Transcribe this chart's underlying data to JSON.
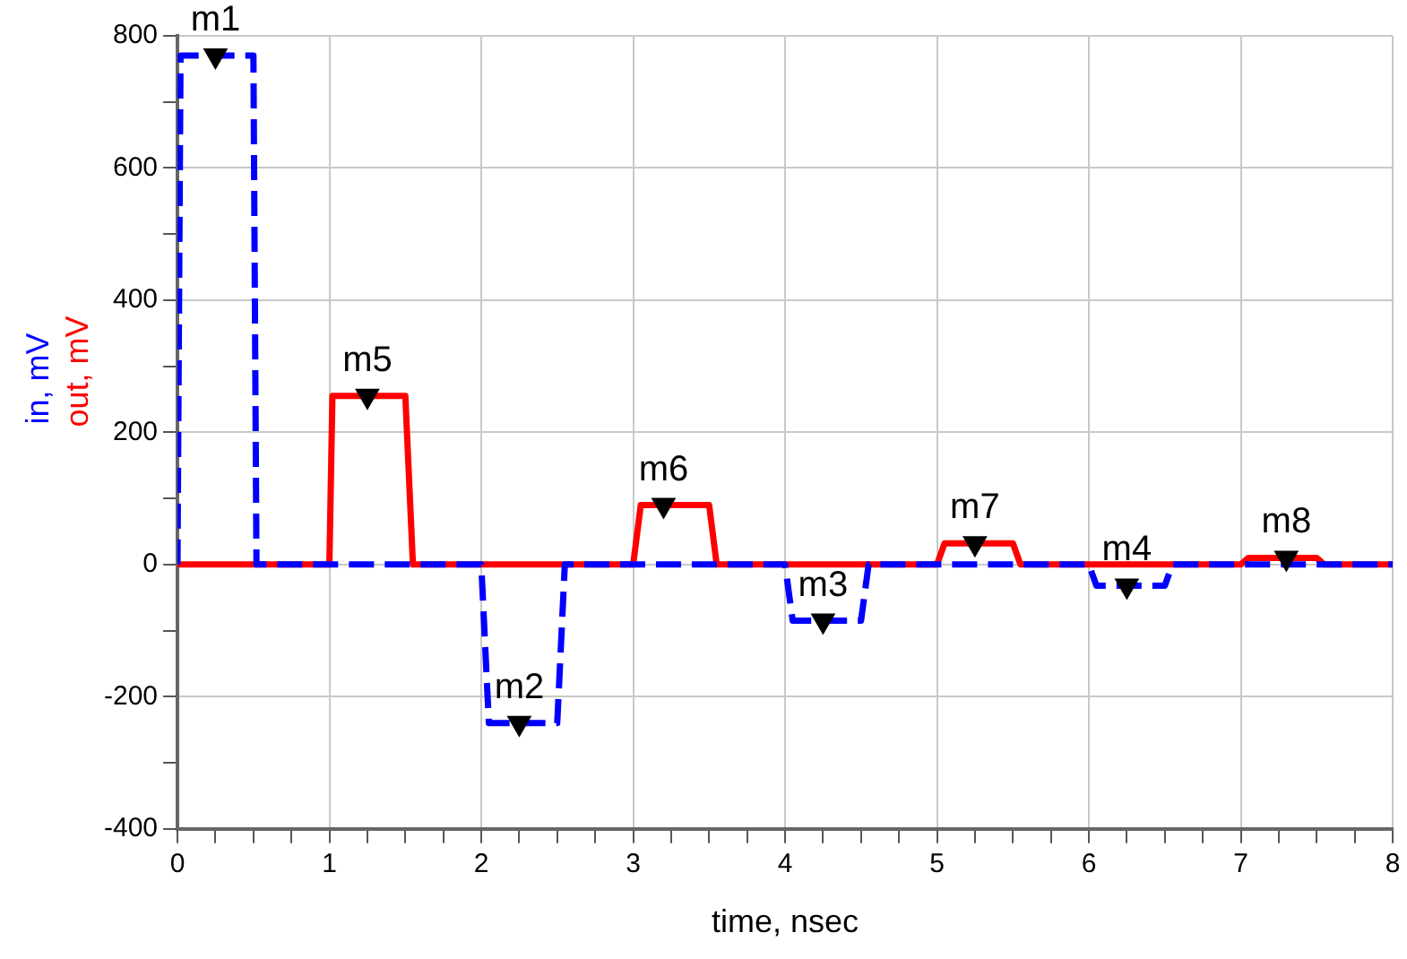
{
  "chart_data": {
    "type": "line",
    "xlabel": "time, nsec",
    "legend": "left",
    "grid": true,
    "marker": "none",
    "xlim": [
      0,
      8
    ],
    "xticks": [
      0,
      {
        "value": 0.25,
        "label": null
      },
      {
        "value": 0.5,
        "label": null
      },
      {
        "value": 0.75,
        "label": null
      },
      1,
      {
        "value": 1.25,
        "label": null
      },
      {
        "value": 1.5,
        "label": null
      },
      {
        "value": 1.75,
        "label": null
      },
      2,
      {
        "value": 2.25,
        "label": null
      },
      {
        "value": 2.5,
        "label": null
      },
      {
        "value": 2.75,
        "label": null
      },
      3,
      {
        "value": 3.25,
        "label": null
      },
      {
        "value": 3.5,
        "label": null
      },
      {
        "value": 3.75,
        "label": null
      },
      4,
      {
        "value": 4.25,
        "label": null
      },
      {
        "value": 4.5,
        "label": null
      },
      {
        "value": 4.75,
        "label": null
      },
      5,
      {
        "value": 5.25,
        "label": null
      },
      {
        "value": 5.5,
        "label": null
      },
      {
        "value": 5.75,
        "label": null
      },
      6,
      {
        "value": 6.25,
        "label": null
      },
      {
        "value": 6.5,
        "label": null
      },
      {
        "value": 6.75,
        "label": null
      },
      7,
      {
        "value": 7.25,
        "label": null
      },
      {
        "value": 7.5,
        "label": null
      },
      {
        "value": 7.75,
        "label": null
      },
      8
    ],
    "ylim": [
      -400,
      800
    ],
    "yticks": [
      -400,
      {
        "value": -300,
        "label": null
      },
      -200,
      {
        "value": -100,
        "label": null
      },
      0,
      {
        "value": 100,
        "label": null
      },
      200,
      {
        "value": 300,
        "label": null
      },
      400,
      {
        "value": 500,
        "label": null
      },
      600,
      {
        "value": 700,
        "label": null
      },
      800
    ],
    "series": [
      {
        "name": "in, mV",
        "color": "#0000ff",
        "line_style": "dashed",
        "x": [
          0,
          0.02,
          0.5,
          0.52,
          2,
          2.05,
          2.5,
          2.55,
          4,
          4.05,
          4.5,
          4.55,
          6,
          6.05,
          6.5,
          6.55,
          8
        ],
        "values": [
          0,
          770,
          770,
          0,
          0,
          -240,
          -240,
          0,
          0,
          -85,
          -85,
          0,
          0,
          -32,
          -32,
          0,
          0
        ]
      },
      {
        "name": "out, mV",
        "color": "#ff0000",
        "line_style": "solid",
        "x": [
          0,
          1,
          1.02,
          1.5,
          1.55,
          3,
          3.05,
          3.5,
          3.55,
          5,
          5.05,
          5.5,
          5.55,
          7,
          7.05,
          7.5,
          7.55,
          8
        ],
        "values": [
          0,
          0,
          255,
          255,
          0,
          0,
          90,
          90,
          0,
          0,
          32,
          32,
          0,
          0,
          10,
          10,
          0,
          0
        ]
      },
      {
        "type": "scatter",
        "color": "#000000",
        "marker": "triangle",
        "x": [
          0.25,
          1.25,
          2.25,
          3.2,
          4.25,
          5.25,
          6.25,
          7.3
        ],
        "values": [
          770,
          255,
          -240,
          90,
          -85,
          32,
          -32,
          10
        ]
      }
    ],
    "annotations": [
      {
        "text": "m1",
        "x": 0.25,
        "y": 770
      },
      {
        "text": "m5",
        "x": 1.25,
        "y": 255
      },
      {
        "text": "m2",
        "x": 2.25,
        "y": -240
      },
      {
        "text": "m6",
        "x": 3.2,
        "y": 90
      },
      {
        "text": "m3",
        "x": 4.25,
        "y": -85
      },
      {
        "text": "m7",
        "x": 5.25,
        "y": 32
      },
      {
        "text": "m4",
        "x": 6.25,
        "y": -32
      },
      {
        "text": "m8",
        "x": 7.3,
        "y": 10
      }
    ]
  }
}
